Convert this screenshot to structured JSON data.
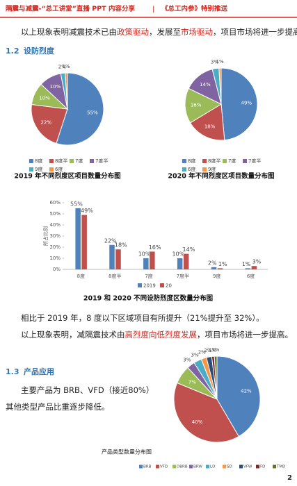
{
  "header": {
    "left": "隔震与减震-“总工讲堂”直播 PPT 内容分享",
    "separator": "|",
    "right": "《总工内参》特别推送"
  },
  "paragraph_1": [
    {
      "text": "以上现象表明减震技术已由",
      "color": "#222222"
    },
    {
      "text": "政策驱动",
      "color": "#d9261c"
    },
    {
      "text": "，发展至",
      "color": "#222222"
    },
    {
      "text": "市场驱动",
      "color": "#d9261c"
    },
    {
      "text": "，项目市场将进一步提高。",
      "color": "#222222"
    }
  ],
  "section_1": {
    "number": "1.2",
    "title": "设防烈度"
  },
  "charts": [
    {
      "type": "pie",
      "caption": "2019 年不同烈度区项目数量分布图",
      "categories": [
        "8度",
        "8度半",
        "7度",
        "7度半",
        "9度",
        "6度"
      ],
      "values": [
        55,
        22,
        10,
        10,
        2,
        1
      ],
      "value_labels": [
        "55%",
        "22%",
        "10%",
        "10%",
        "2%",
        "1%"
      ],
      "colors": [
        "#4f81bd",
        "#c0504d",
        "#9bbb59",
        "#8064a2",
        "#4bacc6",
        "#f79646"
      ]
    },
    {
      "type": "pie",
      "caption": "2020 年不同烈度区项目数量分布图",
      "categories": [
        "8度",
        "8度半",
        "7度",
        "7度半",
        "6度",
        "9度"
      ],
      "values": [
        49,
        18,
        16,
        14,
        3,
        1
      ],
      "value_labels": [
        "49%",
        "18%",
        "16%",
        "14%",
        "3%",
        "1%"
      ],
      "colors": [
        "#4f81bd",
        "#c0504d",
        "#9bbb59",
        "#8064a2",
        "#4bacc6",
        "#f79646"
      ]
    },
    {
      "type": "bar",
      "caption": "2019 和 2020 不同设防烈度区数量分布图",
      "y_label": "所占比例",
      "categories": [
        "8度",
        "8度半",
        "7度",
        "7度半",
        "9度",
        "6度"
      ],
      "series": [
        {
          "name": "2019",
          "color": "#4f81bd",
          "values": [
            55,
            22,
            10,
            10,
            2,
            1
          ],
          "value_labels": [
            "55%",
            "22%",
            "10%",
            "10%",
            "2%",
            "1%"
          ]
        },
        {
          "name": "20",
          "color": "#c0504d",
          "values": [
            49,
            18,
            16,
            14,
            1,
            3
          ],
          "value_labels": [
            "49%",
            "18%",
            "16%",
            "14%",
            "1%",
            "3%"
          ]
        }
      ],
      "ylim": [
        0,
        60
      ],
      "yticks": [
        {
          "value": 0,
          "label": "0%"
        },
        {
          "value": 10,
          "label": "10%"
        },
        {
          "value": 20,
          "label": "20%"
        },
        {
          "value": 30,
          "label": "30%"
        },
        {
          "value": 40,
          "label": "40%"
        },
        {
          "value": 50,
          "label": "50%"
        },
        {
          "value": 60,
          "label": "60%"
        }
      ]
    },
    {
      "type": "pie",
      "caption": "产品类型数量分布图",
      "categories": [
        "BRB",
        "VFD",
        "DBRB",
        "BRW",
        "LD",
        "SD",
        "VFW",
        "FD",
        "TMD"
      ],
      "values": [
        42,
        40,
        7,
        3,
        3,
        2,
        2,
        1,
        1
      ],
      "value_labels": [
        "42%",
        "40%",
        "7%",
        "3%",
        "3%",
        "2%",
        "2%",
        "1%",
        "1%"
      ],
      "colors": [
        "#4f81bd",
        "#c0504d",
        "#9bbb59",
        "#8064a2",
        "#4bacc6",
        "#f79646",
        "#2c4d75",
        "#772c2a",
        "#5f7530"
      ]
    }
  ],
  "paragraph_2": [
    {
      "text": "相比于 2019 年，8 度以下区域项目有所提升（21%提升至 32%）。",
      "color": "#222222"
    }
  ],
  "paragraph_3": [
    {
      "text": "以上现象表明，减隔震技术由",
      "color": "#222222"
    },
    {
      "text": "高烈度向低烈度发展",
      "color": "#d9261c"
    },
    {
      "text": "，项目市场将进一步提高。",
      "color": "#222222"
    }
  ],
  "section_2": {
    "number": "1.3",
    "title": "产品应用"
  },
  "paragraph_4": [
    {
      "text": "主要产品为 BRB、VFD（接近80%）",
      "color": "#222222"
    }
  ],
  "paragraph_5": [
    {
      "text": "其他类型产品比重逐步降低。",
      "color": "#222222"
    }
  ],
  "page_number": "2"
}
